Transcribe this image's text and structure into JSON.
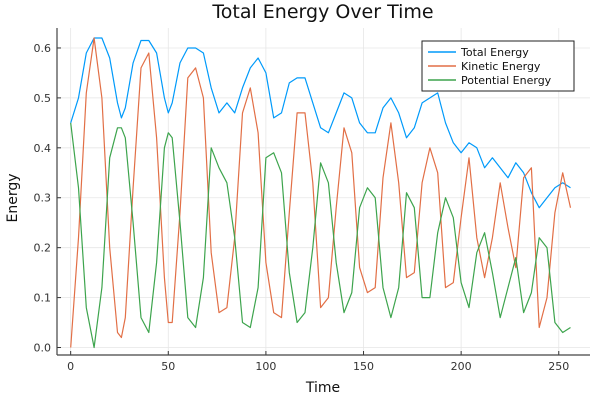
{
  "chart_data": {
    "type": "line",
    "title": "Total Energy Over Time",
    "xlabel": "Time",
    "ylabel": "Energy",
    "xlim": [
      -7,
      266
    ],
    "ylim": [
      -0.015,
      0.64
    ],
    "xticks": [
      0,
      50,
      100,
      150,
      200,
      250
    ],
    "xtick_labels": [
      "0",
      "50",
      "100",
      "150",
      "200",
      "250"
    ],
    "yticks": [
      0.0,
      0.1,
      0.2,
      0.3,
      0.4,
      0.5,
      0.6
    ],
    "ytick_labels": [
      "0.0",
      "0.1",
      "0.2",
      "0.3",
      "0.4",
      "0.5",
      "0.6"
    ],
    "grid": true,
    "legend_position": "top-right",
    "x": [
      0,
      4,
      8,
      12,
      16,
      20,
      24,
      26,
      28,
      32,
      36,
      40,
      44,
      48,
      50,
      52,
      56,
      60,
      64,
      68,
      72,
      76,
      80,
      84,
      88,
      92,
      96,
      100,
      104,
      108,
      112,
      116,
      120,
      124,
      128,
      132,
      136,
      140,
      144,
      148,
      152,
      156,
      160,
      164,
      168,
      172,
      176,
      180,
      184,
      188,
      192,
      196,
      200,
      204,
      208,
      212,
      216,
      220,
      224,
      228,
      232,
      236,
      240,
      244,
      248,
      252,
      256
    ],
    "series": [
      {
        "name": "Total Energy",
        "color": "#009AFA",
        "values": [
          0.45,
          0.5,
          0.59,
          0.62,
          0.62,
          0.58,
          0.49,
          0.46,
          0.48,
          0.57,
          0.615,
          0.615,
          0.59,
          0.5,
          0.47,
          0.49,
          0.57,
          0.6,
          0.6,
          0.59,
          0.52,
          0.47,
          0.49,
          0.47,
          0.52,
          0.56,
          0.58,
          0.55,
          0.46,
          0.47,
          0.53,
          0.54,
          0.54,
          0.49,
          0.44,
          0.43,
          0.47,
          0.51,
          0.5,
          0.45,
          0.43,
          0.43,
          0.48,
          0.5,
          0.47,
          0.42,
          0.44,
          0.49,
          0.5,
          0.51,
          0.45,
          0.41,
          0.39,
          0.41,
          0.4,
          0.36,
          0.38,
          0.36,
          0.34,
          0.37,
          0.35,
          0.31,
          0.28,
          0.3,
          0.32,
          0.33,
          0.32
        ]
      },
      {
        "name": "Kinetic Energy",
        "color": "#E26F46",
        "values": [
          0.0,
          0.22,
          0.51,
          0.62,
          0.5,
          0.2,
          0.03,
          0.02,
          0.06,
          0.32,
          0.56,
          0.59,
          0.42,
          0.14,
          0.05,
          0.05,
          0.27,
          0.54,
          0.56,
          0.5,
          0.19,
          0.07,
          0.08,
          0.22,
          0.47,
          0.52,
          0.43,
          0.17,
          0.07,
          0.06,
          0.27,
          0.47,
          0.47,
          0.33,
          0.08,
          0.1,
          0.28,
          0.44,
          0.39,
          0.16,
          0.11,
          0.12,
          0.34,
          0.45,
          0.33,
          0.14,
          0.15,
          0.33,
          0.4,
          0.35,
          0.12,
          0.13,
          0.26,
          0.38,
          0.22,
          0.14,
          0.22,
          0.33,
          0.24,
          0.16,
          0.34,
          0.36,
          0.04,
          0.1,
          0.27,
          0.35,
          0.28
        ]
      },
      {
        "name": "Potential Energy",
        "color": "#3DA44D",
        "values": [
          0.45,
          0.32,
          0.08,
          0.0,
          0.12,
          0.38,
          0.44,
          0.44,
          0.42,
          0.25,
          0.06,
          0.03,
          0.17,
          0.4,
          0.43,
          0.42,
          0.25,
          0.06,
          0.04,
          0.14,
          0.4,
          0.36,
          0.33,
          0.22,
          0.05,
          0.04,
          0.12,
          0.38,
          0.39,
          0.35,
          0.15,
          0.05,
          0.07,
          0.2,
          0.37,
          0.33,
          0.17,
          0.07,
          0.11,
          0.28,
          0.32,
          0.3,
          0.12,
          0.06,
          0.12,
          0.31,
          0.28,
          0.1,
          0.1,
          0.23,
          0.3,
          0.26,
          0.13,
          0.08,
          0.19,
          0.23,
          0.15,
          0.06,
          0.12,
          0.18,
          0.07,
          0.11,
          0.22,
          0.2,
          0.05,
          0.03,
          0.04
        ]
      }
    ]
  }
}
